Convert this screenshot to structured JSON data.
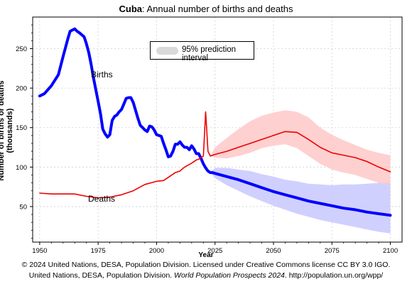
{
  "title_country": "Cuba",
  "title_rest": ": Annual number of births and deaths",
  "legend_label": "95% prediction interval",
  "credit_line1": "© 2024 United Nations, DESA, Population Division. Licensed under Creative Commons license CC BY 3.0 IGO.",
  "credit_line2_a": "United Nations, DESA, Population Division. ",
  "credit_line2_b": "World Population Prospects 2024",
  "credit_line2_c": ". http://population.un.org/wpp/",
  "chart_data": {
    "type": "line",
    "xlabel": "Year",
    "ylabel": "Number of births or deaths (thousands)",
    "xlim": [
      1947,
      2105
    ],
    "ylim": [
      5,
      290
    ],
    "xticks": [
      1950,
      1975,
      2000,
      2025,
      2050,
      2075,
      2100
    ],
    "yticks": [
      50,
      100,
      150,
      200,
      250
    ],
    "grid": true,
    "legend_position": "top-center",
    "series": [
      {
        "name": "Births",
        "color": "#0000ff",
        "x": [
          1950,
          1952,
          1955,
          1958,
          1960,
          1962,
          1963,
          1965,
          1966,
          1967,
          1969,
          1970,
          1971,
          1972,
          1973,
          1974,
          1975,
          1976,
          1977,
          1978,
          1979,
          1980,
          1981,
          1982,
          1983,
          1984,
          1985,
          1986,
          1987,
          1988,
          1989,
          1990,
          1991,
          1992,
          1993,
          1994,
          1995,
          1996,
          1997,
          1998,
          1999,
          2000,
          2001,
          2002,
          2003,
          2004,
          2005,
          2006,
          2007,
          2008,
          2009,
          2010,
          2011,
          2012,
          2013,
          2014,
          2015,
          2016,
          2017,
          2018,
          2019,
          2020,
          2021,
          2022,
          2023,
          2024,
          2025,
          2030,
          2035,
          2040,
          2045,
          2050,
          2055,
          2060,
          2065,
          2070,
          2075,
          2080,
          2085,
          2090,
          2095,
          2100
        ],
        "y": [
          190,
          193,
          203,
          217,
          240,
          262,
          272,
          275,
          272,
          270,
          265,
          256,
          245,
          230,
          213,
          198,
          183,
          168,
          148,
          142,
          138,
          141,
          159,
          164,
          166,
          170,
          173,
          180,
          187,
          188,
          188,
          182,
          172,
          162,
          153,
          150,
          147,
          145,
          152,
          151,
          147,
          141,
          140,
          139,
          130,
          122,
          113,
          114,
          120,
          129,
          129,
          132,
          128,
          125,
          125,
          122,
          127,
          123,
          117,
          117,
          111,
          104,
          99,
          95,
          93,
          93,
          92,
          88,
          84,
          79,
          74,
          69,
          65,
          61,
          57,
          54,
          51,
          48,
          46,
          43,
          41,
          39
        ]
      },
      {
        "name": "Deaths",
        "color": "#ee0000",
        "x": [
          1950,
          1955,
          1960,
          1965,
          1970,
          1975,
          1980,
          1985,
          1990,
          1995,
          2000,
          2003,
          2005,
          2008,
          2010,
          2012,
          2015,
          2017,
          2018,
          2019,
          2020,
          2021,
          2022,
          2023,
          2024,
          2025,
          2030,
          2035,
          2040,
          2045,
          2050,
          2055,
          2060,
          2065,
          2070,
          2075,
          2080,
          2085,
          2090,
          2095,
          2100
        ],
        "y": [
          67,
          66,
          66,
          66,
          63,
          61,
          62,
          65,
          70,
          78,
          82,
          83,
          87,
          93,
          95,
          100,
          105,
          109,
          110,
          112,
          114,
          170,
          120,
          114,
          115,
          116,
          120,
          125,
          130,
          135,
          140,
          145,
          144,
          135,
          125,
          118,
          115,
          112,
          107,
          100,
          94
        ]
      }
    ],
    "intervals": [
      {
        "series": "Births",
        "color": "#c8c8ff",
        "x": [
          2023,
          2025,
          2030,
          2035,
          2040,
          2045,
          2050,
          2055,
          2060,
          2065,
          2070,
          2075,
          2080,
          2085,
          2090,
          2095,
          2100
        ],
        "lower": [
          93,
          86,
          77,
          70,
          63,
          57,
          51,
          46,
          41,
          37,
          33,
          30,
          27,
          24,
          21,
          18,
          16
        ],
        "upper": [
          93,
          99,
          99,
          97,
          95,
          91,
          88,
          84,
          82,
          79,
          78,
          77,
          78,
          78,
          79,
          80,
          81
        ]
      },
      {
        "series": "Deaths",
        "color": "#ffc8c8",
        "x": [
          2023,
          2025,
          2030,
          2035,
          2040,
          2045,
          2050,
          2055,
          2060,
          2065,
          2070,
          2075,
          2080,
          2085,
          2090,
          2095,
          2100
        ],
        "lower": [
          114,
          112,
          111,
          114,
          118,
          124,
          127,
          129,
          124,
          114,
          104,
          97,
          93,
          90,
          85,
          80,
          78
        ],
        "upper": [
          114,
          125,
          137,
          148,
          158,
          165,
          169,
          172,
          170,
          163,
          150,
          141,
          134,
          128,
          122,
          118,
          115
        ]
      }
    ],
    "annotations": [
      "Births",
      "Deaths"
    ]
  }
}
